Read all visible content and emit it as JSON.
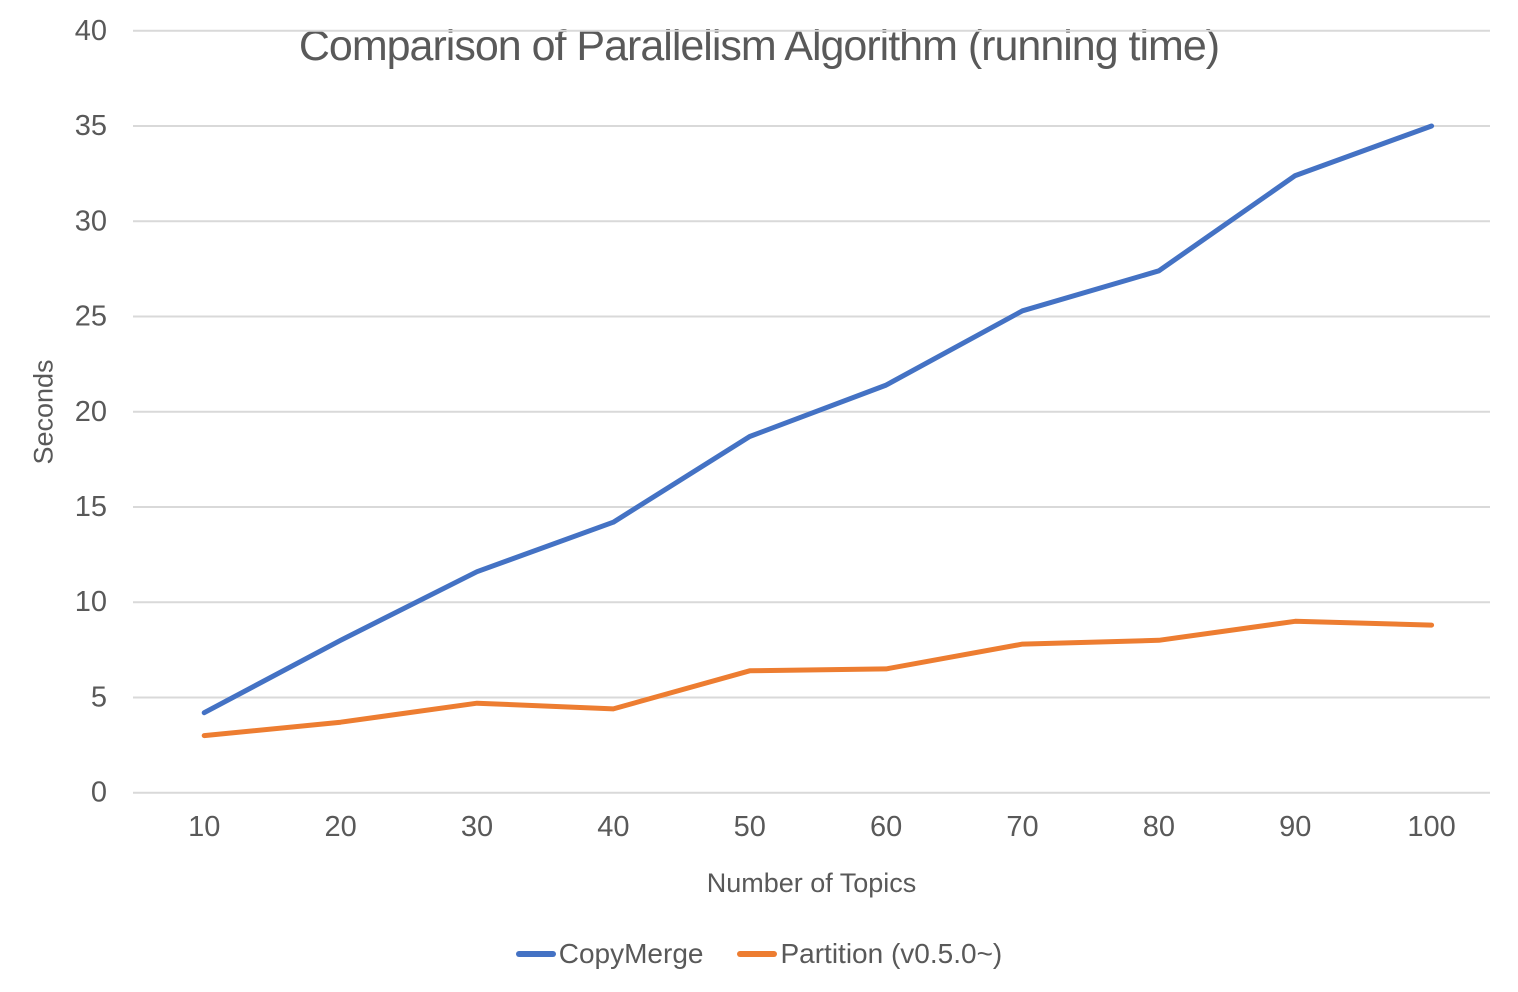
{
  "title": "Comparison of Parallelism Algorithm (running time)",
  "chart_data": {
    "type": "line",
    "title": "Comparison of Parallelism Algorithm (running time)",
    "xlabel": "Number of Topics",
    "ylabel": "Seconds",
    "x": [
      10,
      20,
      30,
      40,
      50,
      60,
      70,
      80,
      90,
      100
    ],
    "x_ticklabels": [
      "10",
      "20",
      "30",
      "40",
      "50",
      "60",
      "70",
      "80",
      "90",
      "100"
    ],
    "y_ticklabels": [
      "0",
      "5",
      "10",
      "15",
      "20",
      "25",
      "30",
      "35",
      "40"
    ],
    "ylim": [
      0,
      40
    ],
    "ytick_step": 5,
    "grid": true,
    "legend_position": "bottom",
    "series": [
      {
        "name": "CopyMerge",
        "color": "#4472C4",
        "values": [
          4.2,
          8.0,
          11.6,
          14.2,
          18.7,
          21.4,
          25.3,
          27.4,
          32.4,
          35.0
        ]
      },
      {
        "name": "Partition (v0.5.0~)",
        "color": "#ED7D31",
        "values": [
          3.0,
          3.7,
          4.7,
          4.4,
          6.4,
          6.5,
          7.8,
          8.0,
          9.0,
          8.8
        ]
      }
    ]
  },
  "colors": {
    "text": "#595959",
    "grid": "#D9D9D9",
    "background": "#FFFFFF"
  }
}
